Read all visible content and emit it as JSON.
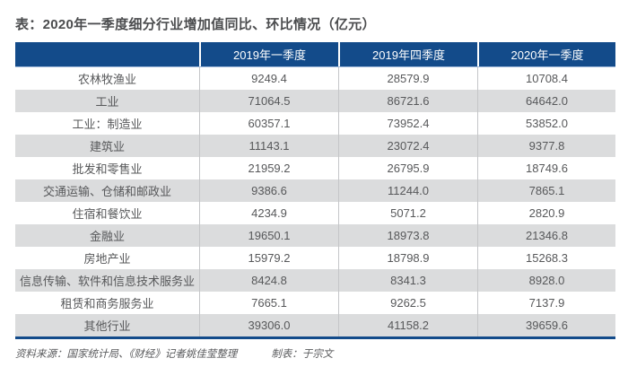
{
  "title": "表：2020年一季度细分行业增加值同比、环比情况（亿元）",
  "colors": {
    "header_bg": "#134b8a",
    "header_text": "#ffffff",
    "row_alt_bg": "#dbdcdd",
    "row_bg": "#ffffff",
    "body_text": "#57585a",
    "bottom_border": "#134b8a",
    "header_underline": "#9db8d9"
  },
  "table": {
    "columns": [
      "",
      "2019年一季度",
      "2019年四季度",
      "2020年一季度"
    ],
    "rows": [
      {
        "label": "农林牧渔业",
        "values": [
          "9249.4",
          "28579.9",
          "10708.4"
        ]
      },
      {
        "label": "工业",
        "values": [
          "71064.5",
          "86721.6",
          "64642.0"
        ]
      },
      {
        "label": "工业：制造业",
        "values": [
          "60357.1",
          "73952.4",
          "53852.0"
        ]
      },
      {
        "label": "建筑业",
        "values": [
          "11143.1",
          "23072.4",
          "9377.8"
        ]
      },
      {
        "label": "批发和零售业",
        "values": [
          "21959.2",
          "26795.9",
          "18749.6"
        ]
      },
      {
        "label": "交通运输、仓储和邮政业",
        "values": [
          "9386.6",
          "11244.0",
          "7865.1"
        ]
      },
      {
        "label": "住宿和餐饮业",
        "values": [
          "4234.9",
          "5071.2",
          "2820.9"
        ]
      },
      {
        "label": "金融业",
        "values": [
          "19650.1",
          "18973.8",
          "21346.8"
        ]
      },
      {
        "label": "房地产业",
        "values": [
          "15979.2",
          "18798.9",
          "15268.3"
        ]
      },
      {
        "label": "信息传输、软件和信息技术服务业",
        "values": [
          "8424.8",
          "8341.3",
          "8928.0"
        ]
      },
      {
        "label": "租赁和商务服务业",
        "values": [
          "7665.1",
          "9262.5",
          "7137.9"
        ]
      },
      {
        "label": "其他行业",
        "values": [
          "39306.0",
          "41158.2",
          "39659.6"
        ]
      }
    ]
  },
  "footer": {
    "source": "资料来源：国家统计局、《财经》记者姚佳莹整理",
    "credit": "制表：于宗文"
  },
  "chart_data": {
    "type": "table",
    "title": "表：2020年一季度细分行业增加值同比、环比情况（亿元）",
    "unit": "亿元",
    "columns": [
      "",
      "2019年一季度",
      "2019年四季度",
      "2020年一季度"
    ],
    "rows": [
      [
        "农林牧渔业",
        9249.4,
        28579.9,
        10708.4
      ],
      [
        "工业",
        71064.5,
        86721.6,
        64642.0
      ],
      [
        "工业：制造业",
        60357.1,
        73952.4,
        53852.0
      ],
      [
        "建筑业",
        11143.1,
        23072.4,
        9377.8
      ],
      [
        "批发和零售业",
        21959.2,
        26795.9,
        18749.6
      ],
      [
        "交通运输、仓储和邮政业",
        9386.6,
        11244.0,
        7865.1
      ],
      [
        "住宿和餐饮业",
        4234.9,
        5071.2,
        2820.9
      ],
      [
        "金融业",
        19650.1,
        18973.8,
        21346.8
      ],
      [
        "房地产业",
        15979.2,
        18798.9,
        15268.3
      ],
      [
        "信息传输、软件和信息技术服务业",
        8424.8,
        8341.3,
        8928.0
      ],
      [
        "租赁和商务服务业",
        7665.1,
        9262.5,
        7137.9
      ],
      [
        "其他行业",
        39306.0,
        41158.2,
        39659.6
      ]
    ],
    "source_note": "资料来源：国家统计局、《财经》记者姚佳莹整理",
    "credit_note": "制表：于宗文"
  }
}
